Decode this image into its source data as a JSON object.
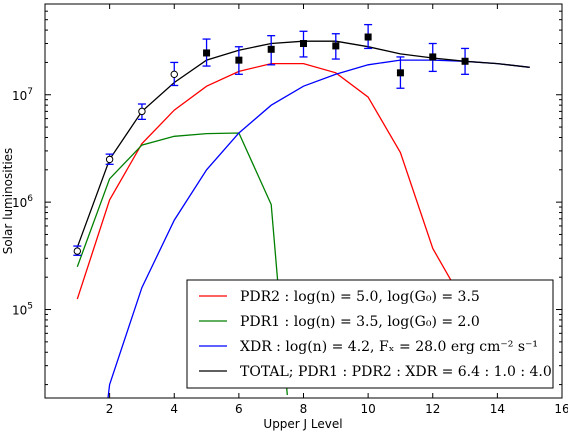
{
  "chart_data": {
    "type": "line",
    "xlabel": "Upper J Level",
    "ylabel": "Solar luminosities",
    "xlim": [
      0,
      16
    ],
    "ylim": [
      15000,
      70000000
    ],
    "yscale": "log",
    "xticks": [
      2,
      4,
      6,
      8,
      10,
      12,
      14,
      16
    ],
    "yticks": [
      {
        "value": 100000,
        "base": "10",
        "exp": "5"
      },
      {
        "value": 1000000,
        "base": "10",
        "exp": "6"
      },
      {
        "value": 10000000,
        "base": "10",
        "exp": "7"
      }
    ],
    "grid": false,
    "legend_position": "lower-right",
    "series": [
      {
        "name": "PDR2 : log(n) = 5.0, log(G₀) = 3.5",
        "color": "#ff0000",
        "x": [
          1,
          2,
          3,
          4,
          5,
          6,
          7,
          8,
          9,
          10,
          11,
          12,
          13
        ],
        "y": [
          125000,
          1050000,
          3500000,
          7200000,
          12000000,
          16500000,
          19500000,
          19500000,
          16000000,
          9500000,
          2900000,
          370000,
          110000
        ]
      },
      {
        "name": "PDR1 : log(n) = 3.5, log(G₀) = 2.0",
        "color": "#008000",
        "x": [
          1,
          2,
          3,
          4,
          5,
          6,
          7,
          7.5
        ],
        "y": [
          250000,
          1650000,
          3400000,
          4100000,
          4350000,
          4400000,
          950000,
          16000
        ]
      },
      {
        "name": "XDR : log(n) = 4.2, Fₓ = 28.0 erg cm⁻² s⁻¹",
        "color": "#0000ff",
        "x": [
          1.95,
          2,
          3,
          4,
          5,
          6,
          7,
          8,
          9,
          10,
          11,
          12,
          13,
          14,
          15
        ],
        "y": [
          15000,
          20000,
          160000,
          680000,
          2000000,
          4400000,
          8000000,
          12000000,
          15500000,
          19000000,
          21000000,
          21000000,
          20500000,
          19500000,
          18000000
        ]
      },
      {
        "name": "TOTAL; PDR1 : PDR2 : XDR = 6.4 : 1.0 : 4.0",
        "color": "#000000",
        "x": [
          1,
          2,
          3,
          4,
          5,
          6,
          7,
          8,
          9,
          10,
          11,
          12,
          13,
          14,
          15
        ],
        "y": [
          380000,
          2500000,
          7000000,
          13000000,
          21000000,
          26000000,
          30000000,
          31500000,
          31500000,
          28000000,
          24000000,
          22000000,
          20500000,
          19500000,
          18000000
        ]
      }
    ],
    "observations": {
      "open": [
        {
          "x": 1,
          "y": 350000,
          "lo": 320000,
          "hi": 390000
        },
        {
          "x": 2,
          "y": 2500000,
          "lo": 2250000,
          "hi": 2800000
        },
        {
          "x": 3,
          "y": 7000000,
          "lo": 5900000,
          "hi": 8200000
        },
        {
          "x": 4,
          "y": 15500000,
          "lo": 12200000,
          "hi": 20000000
        }
      ],
      "filled": [
        {
          "x": 5,
          "y": 24500000,
          "lo": 18500000,
          "hi": 33000000
        },
        {
          "x": 6,
          "y": 21000000,
          "lo": 15500000,
          "hi": 28000000
        },
        {
          "x": 7,
          "y": 26500000,
          "lo": 19000000,
          "hi": 35500000
        },
        {
          "x": 8,
          "y": 30000000,
          "lo": 22500000,
          "hi": 39000000
        },
        {
          "x": 9,
          "y": 28500000,
          "lo": 21500000,
          "hi": 37000000
        },
        {
          "x": 10,
          "y": 34500000,
          "lo": 27000000,
          "hi": 45000000
        },
        {
          "x": 11,
          "y": 16000000,
          "lo": 11500000,
          "hi": 22500000
        },
        {
          "x": 12,
          "y": 22500000,
          "lo": 16500000,
          "hi": 30000000
        },
        {
          "x": 13,
          "y": 20500000,
          "lo": 15500000,
          "hi": 27000000
        }
      ]
    },
    "errorbar_color": "#0000ff"
  }
}
